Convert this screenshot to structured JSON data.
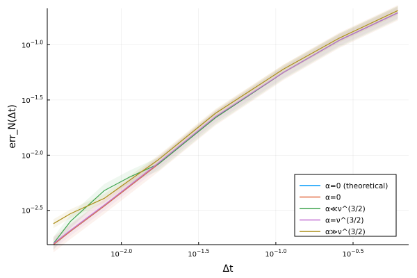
{
  "chart_data": {
    "type": "line",
    "xlabel": "Δt",
    "ylabel": "err_N(Δt)",
    "xscale": "log10",
    "yscale": "log10",
    "xlim_log10": [
      -2.48,
      -0.14
    ],
    "ylim_log10": [
      -2.81,
      -0.67
    ],
    "xticks": [
      {
        "base": "10",
        "exp": "−2.0",
        "value_log10": -2.0
      },
      {
        "base": "10",
        "exp": "−1.5",
        "value_log10": -1.5
      },
      {
        "base": "10",
        "exp": "−1.0",
        "value_log10": -1.0
      },
      {
        "base": "10",
        "exp": "−0.5",
        "value_log10": -0.5
      }
    ],
    "yticks": [
      {
        "base": "10",
        "exp": "−1.0",
        "value_log10": -1.0
      },
      {
        "base": "10",
        "exp": "−1.5",
        "value_log10": -1.5
      },
      {
        "base": "10",
        "exp": "−2.0",
        "value_log10": -2.0
      },
      {
        "base": "10",
        "exp": "−2.5",
        "value_log10": -2.5
      }
    ],
    "grid": true,
    "legend_position": "bottom-right",
    "series": [
      {
        "name": "α=0 (theoretical)",
        "color": "#009AFA",
        "x_log10": [
          -2.44,
          -2.33,
          -2.11,
          -1.76,
          -1.39,
          -0.95,
          -0.59,
          -0.21
        ],
        "y_log10": [
          -2.81,
          -2.69,
          -2.46,
          -2.08,
          -1.66,
          -1.25,
          -0.96,
          -0.71
        ]
      },
      {
        "name": "α=0",
        "color": "#E26F46",
        "band": 0.07,
        "x_log10": [
          -2.44,
          -2.33,
          -2.11,
          -1.76,
          -1.39,
          -0.95,
          -0.59,
          -0.21
        ],
        "y_log10": [
          -2.81,
          -2.69,
          -2.46,
          -2.08,
          -1.66,
          -1.25,
          -0.96,
          -0.71
        ]
      },
      {
        "name": "α≪ν^(3/2)",
        "color": "#3DA44D",
        "band": 0.06,
        "x_log10": [
          -2.44,
          -2.33,
          -2.11,
          -1.95,
          -1.76,
          -1.39,
          -0.95,
          -0.59,
          -0.21
        ],
        "y_log10": [
          -2.8,
          -2.6,
          -2.32,
          -2.2,
          -2.08,
          -1.66,
          -1.25,
          -0.96,
          -0.71
        ]
      },
      {
        "name": "α=ν^(3/2)",
        "color": "#C271D2",
        "band": 0.05,
        "x_log10": [
          -2.44,
          -2.33,
          -2.11,
          -1.76,
          -1.39,
          -0.95,
          -0.59,
          -0.21
        ],
        "y_log10": [
          -2.8,
          -2.68,
          -2.45,
          -2.07,
          -1.65,
          -1.25,
          -0.96,
          -0.71
        ]
      },
      {
        "name": "α≫ν^(3/2)",
        "color": "#AC8D18",
        "band": 0.04,
        "x_log10": [
          -2.44,
          -2.33,
          -2.11,
          -1.76,
          -1.39,
          -0.95,
          -0.59,
          -0.21
        ],
        "y_log10": [
          -2.62,
          -2.53,
          -2.39,
          -2.04,
          -1.62,
          -1.22,
          -0.94,
          -0.69
        ]
      }
    ]
  }
}
